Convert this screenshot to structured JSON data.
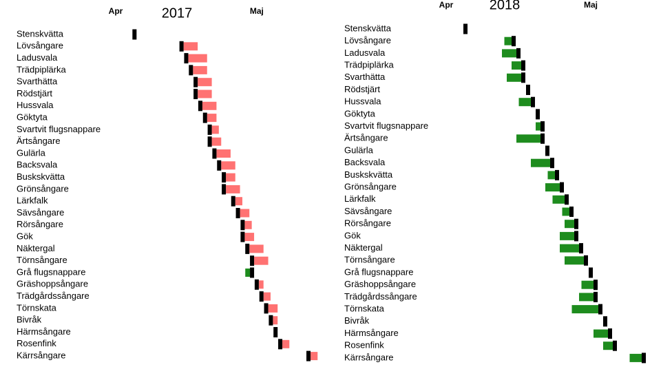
{
  "chart_data": [
    {
      "type": "range",
      "title": "2017",
      "categories": [
        "Stenskvätta",
        "Lövsångare",
        "Ladusvala",
        "Trädpiplärka",
        "Svarthätta",
        "Rödstjärt",
        "Hussvala",
        "Göktyta",
        "Svartvit flugsnappare",
        "Ärtsångare",
        "Gulärla",
        "Backsvala",
        "Buskskvätta",
        "Grönsångare",
        "Lärkfalk",
        "Sävsångare",
        "Rörsångare",
        "Gök",
        "Näktergal",
        "Törnsångare",
        "Grå flugsnappare",
        "Gräshoppsångare",
        "Trädgårdssångare",
        "Törnskata",
        "Bivråk",
        "Härmsångare",
        "Rosenfink",
        "Kärrsångare"
      ],
      "values": [
        95,
        105,
        106,
        107,
        108,
        108,
        109,
        110,
        111,
        111,
        112,
        113,
        114,
        114,
        116,
        117,
        118,
        118,
        119,
        120,
        120,
        121,
        122,
        123,
        124,
        125,
        126,
        132
      ],
      "deviations": [
        0,
        3,
        4,
        3,
        3,
        3,
        3,
        2,
        1.5,
        2,
        3,
        3,
        2,
        3,
        1.5,
        2,
        1.5,
        2,
        3,
        3,
        -1,
        1,
        1.5,
        2,
        1,
        0,
        1.5,
        1.5
      ],
      "xlim": [
        87,
        135
      ],
      "xticks": [
        {
          "value": 91,
          "label": "Apr"
        },
        {
          "value": 121,
          "label": "Maj"
        }
      ],
      "mark_color": "#000000",
      "late_color": "#ff7272",
      "early_color": "#1e8c1e"
    },
    {
      "type": "range",
      "title": "2018",
      "categories": [
        "Stenskvätta",
        "Lövsångare",
        "Ladusvala",
        "Trädpiplärka",
        "Svarthätta",
        "Rödstjärt",
        "Hussvala",
        "Göktyta",
        "Svartvit flugsnappare",
        "Ärtsångare",
        "Gulärla",
        "Backsvala",
        "Buskskvätta",
        "Grönsångare",
        "Lärkfalk",
        "Sävsångare",
        "Rörsångare",
        "Gök",
        "Näktergal",
        "Törnsångare",
        "Grå flugsnappare",
        "Gräshoppsångare",
        "Trädgårdssångare",
        "Törnskata",
        "Bivråk",
        "Härmsångare",
        "Rosenfink",
        "Kärrsångare"
      ],
      "values": [
        95,
        105,
        106,
        107,
        107,
        108,
        109,
        110,
        111,
        111,
        112,
        113,
        114,
        115,
        116,
        117,
        118,
        118,
        119,
        120,
        121,
        122,
        122,
        123,
        124,
        125,
        126,
        132
      ],
      "deviations": [
        0,
        -1.5,
        -3,
        -2,
        -3,
        0,
        -2.5,
        0,
        -1,
        -5,
        0,
        -4,
        -1.5,
        -3,
        -2.5,
        -1.5,
        -2,
        -3,
        -4,
        -4,
        0,
        -2.5,
        -3,
        -5.5,
        0,
        -3,
        -2,
        -2.5
      ],
      "xlim": [
        87,
        135
      ],
      "xticks": [
        {
          "value": 91,
          "label": "Apr"
        },
        {
          "value": 121,
          "label": "Maj"
        }
      ],
      "mark_color": "#000000",
      "late_color": "#ff7272",
      "early_color": "#1e8c1e"
    }
  ]
}
